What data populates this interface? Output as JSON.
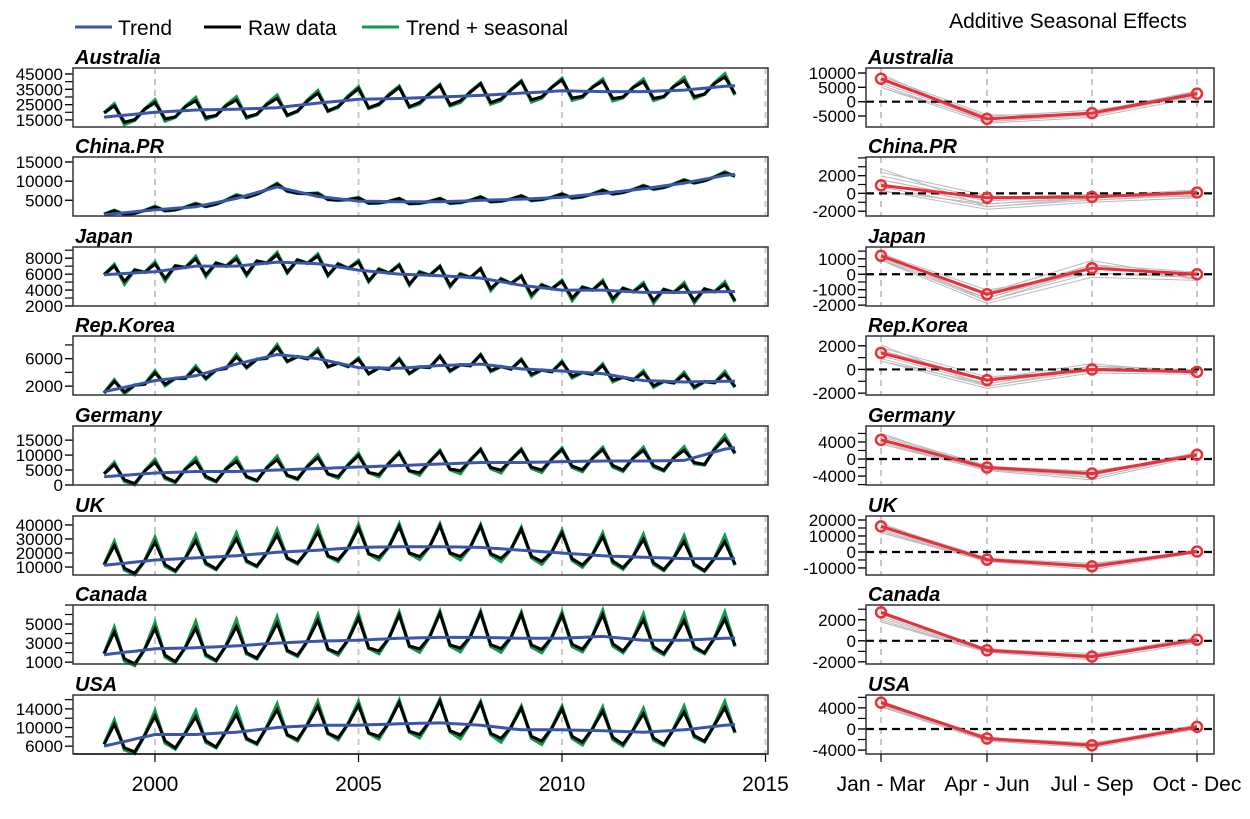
{
  "chart_data": [
    {
      "type": "line",
      "legend": [
        {
          "name": "Trend",
          "color": "#3a56a8"
        },
        {
          "name": "Raw data",
          "color": "#000000"
        },
        {
          "name": "Trend + seasonal",
          "color": "#0f9a4c"
        }
      ],
      "legend_position": "top-left",
      "x_range": [
        1998.75,
        2014.25
      ],
      "x_step": 0.25,
      "xlim": [
        1997.9,
        2015
      ],
      "x_ticks": [
        "2000",
        "2005",
        "2010",
        "2015"
      ],
      "grid": "vertical dashed at x ticks",
      "trend_years": [
        1999,
        2000,
        2001,
        2002,
        2003,
        2004,
        2005,
        2006,
        2007,
        2008,
        2009,
        2010,
        2011,
        2012,
        2013,
        2014
      ],
      "panels": [
        {
          "title": "Australia",
          "ylim": [
            10400,
            48900
          ],
          "yticks": [
            "15000",
            "25000",
            "35000",
            "45000"
          ],
          "yminor": 5000,
          "trend": [
            17500,
            20000,
            21500,
            22000,
            23000,
            26000,
            28500,
            29000,
            30000,
            31000,
            32500,
            34000,
            33500,
            33500,
            34500,
            37000
          ]
        },
        {
          "title": "China.PR",
          "ylim": [
            900,
            16300
          ],
          "yticks": [
            "5000",
            "10000",
            "15000"
          ],
          "yminor": 5000,
          "trend": [
            1500,
            2500,
            3300,
            5500,
            8500,
            6000,
            4800,
            4600,
            4600,
            5000,
            5300,
            5800,
            6800,
            8000,
            9500,
            11500
          ]
        },
        {
          "title": "Japan",
          "ylim": [
            2000,
            9400
          ],
          "yticks": [
            "2000",
            "4000",
            "6000",
            "8000"
          ],
          "yminor": 1000,
          "trend": [
            6000,
            6300,
            7000,
            7000,
            7500,
            7300,
            6500,
            6000,
            5800,
            5500,
            4600,
            4000,
            4000,
            3700,
            3700,
            3800
          ]
        },
        {
          "title": "Rep.Korea",
          "ylim": [
            700,
            9300
          ],
          "yticks": [
            "2000",
            "6000"
          ],
          "yminor": 2000,
          "trend": [
            1500,
            2800,
            3500,
            5200,
            6600,
            6000,
            4700,
            4600,
            5000,
            5200,
            4500,
            4200,
            3800,
            2800,
            2600,
            2700
          ]
        },
        {
          "title": "Germany",
          "ylim": [
            0,
            19700
          ],
          "yticks": [
            "0",
            "5000",
            "10000",
            "15000"
          ],
          "yminor": 5000,
          "trend": [
            3000,
            4000,
            4500,
            4500,
            5000,
            5500,
            6000,
            6500,
            7000,
            7500,
            7500,
            7800,
            8000,
            8000,
            8200,
            12000
          ]
        },
        {
          "title": "UK",
          "ylim": [
            4300,
            46400
          ],
          "yticks": [
            "10000",
            "20000",
            "30000",
            "40000"
          ],
          "yminor": 10000,
          "trend": [
            12000,
            15000,
            16500,
            18000,
            20500,
            22000,
            24000,
            24500,
            24500,
            24000,
            22000,
            20000,
            18000,
            17000,
            16000,
            16000
          ]
        },
        {
          "title": "Canada",
          "ylim": [
            800,
            7000
          ],
          "yticks": [
            "1000",
            "3000",
            "5000"
          ],
          "yminor": 1000,
          "trend": [
            1900,
            2400,
            2500,
            2700,
            3000,
            3200,
            3300,
            3500,
            3600,
            3600,
            3500,
            3500,
            3700,
            3300,
            3300,
            3500
          ]
        },
        {
          "title": "USA",
          "ylim": [
            4300,
            17000
          ],
          "yticks": [
            "6000",
            "10000",
            "14000"
          ],
          "yminor": 2000,
          "trend": [
            6500,
            8500,
            8500,
            9000,
            10000,
            10500,
            10500,
            10800,
            11000,
            10500,
            9500,
            9500,
            9300,
            9000,
            9500,
            10500
          ]
        }
      ]
    },
    {
      "type": "line",
      "title": "Additive Seasonal Effects",
      "categories": [
        "Jan - Mar",
        "Apr - Jun",
        "Jul - Sep",
        "Oct - Dec"
      ],
      "reference_line": 0,
      "colors": {
        "effect": "#e8303a",
        "yearly": "#bbbbbb",
        "zero": "#000000"
      },
      "panels": [
        {
          "title": "Australia",
          "ylim": [
            -8840,
            11750
          ],
          "yticks": [
            "-5000",
            "0",
            "5000",
            "10000"
          ],
          "yminor": 5000,
          "effects": [
            8000,
            -6000,
            -4000,
            2800
          ],
          "yearly_min": [
            5000,
            -7500,
            -5500,
            1500
          ],
          "yearly_max": [
            10500,
            -4500,
            -3000,
            4000
          ]
        },
        {
          "title": "China.PR",
          "ylim": [
            -2550,
            4100
          ],
          "yticks": [
            "-2000",
            "0",
            "2000"
          ],
          "yminor": 1000,
          "effects": [
            900,
            -500,
            -400,
            100
          ],
          "yearly_min": [
            300,
            -1800,
            -1000,
            -500
          ],
          "yearly_max": [
            3200,
            -200,
            -100,
            500
          ]
        },
        {
          "title": "Japan",
          "ylim": [
            -2060,
            1770
          ],
          "yticks": [
            "-2000",
            "-1000",
            "0",
            "1000"
          ],
          "yminor": 500,
          "effects": [
            1200,
            -1300,
            400,
            0
          ],
          "yearly_min": [
            900,
            -1900,
            -200,
            -400
          ],
          "yearly_max": [
            1500,
            -1000,
            900,
            200
          ]
        },
        {
          "title": "Rep.Korea",
          "ylim": [
            -2160,
            2830
          ],
          "yticks": [
            "-2000",
            "0",
            "2000"
          ],
          "yminor": 1000,
          "effects": [
            1400,
            -900,
            0,
            -200
          ],
          "yearly_min": [
            700,
            -1600,
            -300,
            -400
          ],
          "yearly_max": [
            2300,
            -600,
            500,
            0
          ]
        },
        {
          "title": "Germany",
          "ylim": [
            -6100,
            7750
          ],
          "yticks": [
            "-4000",
            "0",
            "4000"
          ],
          "yminor": 2000,
          "effects": [
            4500,
            -2000,
            -3400,
            1000
          ],
          "yearly_min": [
            3500,
            -2700,
            -4900,
            600
          ],
          "yearly_max": [
            6500,
            -1500,
            -2800,
            1600
          ]
        },
        {
          "title": "UK",
          "ylim": [
            -14400,
            22500
          ],
          "yticks": [
            "-10000",
            "0",
            "10000",
            "20000"
          ],
          "yminor": 5000,
          "effects": [
            16000,
            -4800,
            -9000,
            300
          ],
          "yearly_min": [
            12000,
            -6000,
            -11000,
            -500
          ],
          "yearly_max": [
            19000,
            -3500,
            -7000,
            1500
          ]
        },
        {
          "title": "Canada",
          "ylim": [
            -2200,
            3400
          ],
          "yticks": [
            "-2000",
            "0",
            "2000"
          ],
          "yminor": 1000,
          "effects": [
            2700,
            -900,
            -1500,
            100
          ],
          "yearly_min": [
            1800,
            -1100,
            -1800,
            -200
          ],
          "yearly_max": [
            3000,
            -700,
            -1200,
            400
          ]
        },
        {
          "title": "USA",
          "ylim": [
            -4750,
            6450
          ],
          "yticks": [
            "-4000",
            "0",
            "4000"
          ],
          "yminor": 2000,
          "effects": [
            5000,
            -1800,
            -3100,
            400
          ],
          "yearly_min": [
            4200,
            -2300,
            -3600,
            0
          ],
          "yearly_max": [
            5600,
            -1500,
            -2600,
            900
          ]
        }
      ]
    }
  ]
}
